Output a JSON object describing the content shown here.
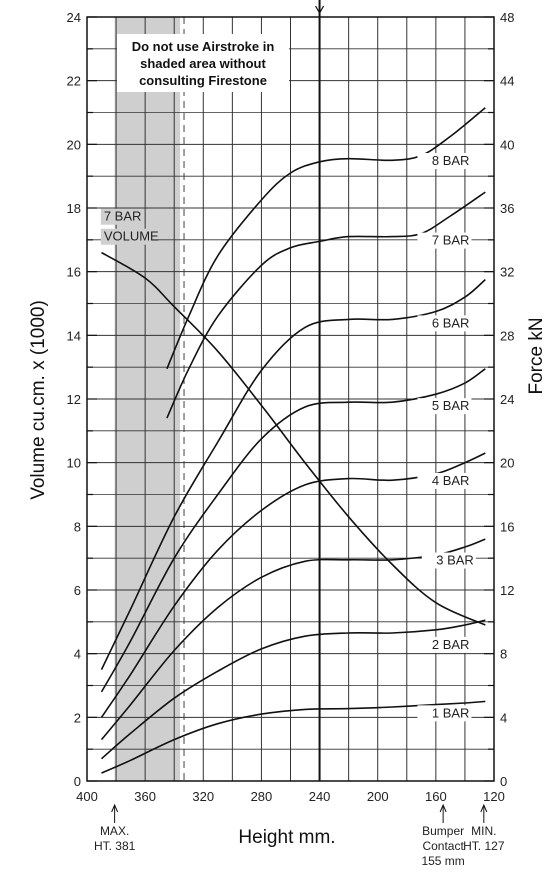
{
  "chart_data": {
    "type": "line",
    "title": "",
    "xlabel": "Height mm.",
    "ylabel_left": "Volume cu.cm. x (1000)",
    "ylabel_right": "Force kN",
    "xlim": [
      400,
      120
    ],
    "x_reversed": true,
    "ylim_left": [
      0,
      24
    ],
    "ylim_right": [
      0,
      48
    ],
    "grid": true,
    "x_ticks": [
      "400",
      "360",
      "320",
      "280",
      "240",
      "200",
      "160",
      "120"
    ],
    "y_left_ticks": [
      "0",
      "2",
      "4",
      "6",
      "8",
      "10",
      "12",
      "14",
      "16",
      "18",
      "20",
      "22",
      "24"
    ],
    "y_right_ticks": [
      "0",
      "4",
      "8",
      "12",
      "16",
      "20",
      "24",
      "28",
      "32",
      "36",
      "40",
      "44",
      "48"
    ],
    "shaded_region": {
      "x_from": 381,
      "x_to": 336,
      "note_lines": [
        "Do not use Airstroke in",
        "shaded area without",
        "consulting Firestone"
      ]
    },
    "design_height": 240,
    "markers": [
      {
        "x": 381,
        "lines": [
          "MAX.",
          "HT. 381"
        ]
      },
      {
        "x": 155,
        "lines": [
          "Bumper",
          "Contact",
          "155 mm"
        ]
      },
      {
        "x": 127,
        "lines": [
          "MIN.",
          "HT. 127"
        ]
      }
    ],
    "series": [
      {
        "name": "1 BAR",
        "axis": "right",
        "points": [
          [
            390,
            0.5
          ],
          [
            370,
            1.3
          ],
          [
            340,
            2.6
          ],
          [
            310,
            3.6
          ],
          [
            280,
            4.2
          ],
          [
            250,
            4.5
          ],
          [
            220,
            4.55
          ],
          [
            190,
            4.65
          ],
          [
            160,
            4.8
          ],
          [
            140,
            4.9
          ],
          [
            126,
            5.0
          ]
        ]
      },
      {
        "name": "2 BAR",
        "axis": "right",
        "points": [
          [
            390,
            1.4
          ],
          [
            370,
            3.0
          ],
          [
            340,
            5.2
          ],
          [
            310,
            6.9
          ],
          [
            280,
            8.3
          ],
          [
            250,
            9.1
          ],
          [
            220,
            9.3
          ],
          [
            190,
            9.3
          ],
          [
            160,
            9.5
          ],
          [
            140,
            9.8
          ],
          [
            126,
            10.1
          ]
        ]
      },
      {
        "name": "3 BAR",
        "axis": "right",
        "points": [
          [
            390,
            2.6
          ],
          [
            370,
            4.8
          ],
          [
            340,
            8.2
          ],
          [
            310,
            10.9
          ],
          [
            280,
            12.8
          ],
          [
            250,
            13.8
          ],
          [
            220,
            13.9
          ],
          [
            190,
            13.9
          ],
          [
            160,
            14.2
          ],
          [
            140,
            14.7
          ],
          [
            126,
            15.2
          ]
        ]
      },
      {
        "name": "4 BAR",
        "axis": "right",
        "points": [
          [
            390,
            4.0
          ],
          [
            370,
            6.7
          ],
          [
            340,
            11.0
          ],
          [
            310,
            14.5
          ],
          [
            280,
            17.0
          ],
          [
            250,
            18.6
          ],
          [
            220,
            19.0
          ],
          [
            190,
            18.9
          ],
          [
            160,
            19.3
          ],
          [
            140,
            20.0
          ],
          [
            126,
            20.6
          ]
        ]
      },
      {
        "name": "5 BAR",
        "axis": "right",
        "points": [
          [
            390,
            5.6
          ],
          [
            370,
            8.8
          ],
          [
            340,
            14.0
          ],
          [
            310,
            18.0
          ],
          [
            280,
            21.5
          ],
          [
            250,
            23.5
          ],
          [
            220,
            23.8
          ],
          [
            190,
            23.8
          ],
          [
            160,
            24.3
          ],
          [
            140,
            25.0
          ],
          [
            126,
            25.9
          ]
        ]
      },
      {
        "name": "6 BAR",
        "axis": "right",
        "points": [
          [
            390,
            7.0
          ],
          [
            370,
            10.8
          ],
          [
            340,
            16.6
          ],
          [
            310,
            21.3
          ],
          [
            280,
            25.8
          ],
          [
            250,
            28.5
          ],
          [
            220,
            29.0
          ],
          [
            190,
            29.0
          ],
          [
            160,
            29.5
          ],
          [
            140,
            30.4
          ],
          [
            126,
            31.5
          ]
        ]
      },
      {
        "name": "7 BAR",
        "axis": "right",
        "points": [
          [
            345,
            22.8
          ],
          [
            330,
            25.9
          ],
          [
            310,
            29.2
          ],
          [
            280,
            32.4
          ],
          [
            260,
            33.5
          ],
          [
            240,
            33.9
          ],
          [
            220,
            34.2
          ],
          [
            190,
            34.2
          ],
          [
            170,
            34.4
          ],
          [
            150,
            35.5
          ],
          [
            126,
            37.0
          ]
        ]
      },
      {
        "name": "8 BAR",
        "axis": "right",
        "points": [
          [
            345,
            25.9
          ],
          [
            330,
            29.2
          ],
          [
            310,
            33.0
          ],
          [
            280,
            36.5
          ],
          [
            260,
            38.2
          ],
          [
            240,
            38.9
          ],
          [
            220,
            39.1
          ],
          [
            190,
            39.0
          ],
          [
            170,
            39.3
          ],
          [
            150,
            40.5
          ],
          [
            126,
            42.3
          ]
        ]
      },
      {
        "name": "7 BAR VOLUME",
        "axis": "left",
        "label_lines": [
          "7 BAR",
          "VOLUME"
        ],
        "points": [
          [
            390,
            16.6
          ],
          [
            360,
            15.8
          ],
          [
            340,
            14.9
          ],
          [
            310,
            13.5
          ],
          [
            280,
            11.8
          ],
          [
            250,
            10.0
          ],
          [
            220,
            8.3
          ],
          [
            190,
            6.8
          ],
          [
            160,
            5.6
          ],
          [
            126,
            4.9
          ]
        ]
      }
    ]
  }
}
